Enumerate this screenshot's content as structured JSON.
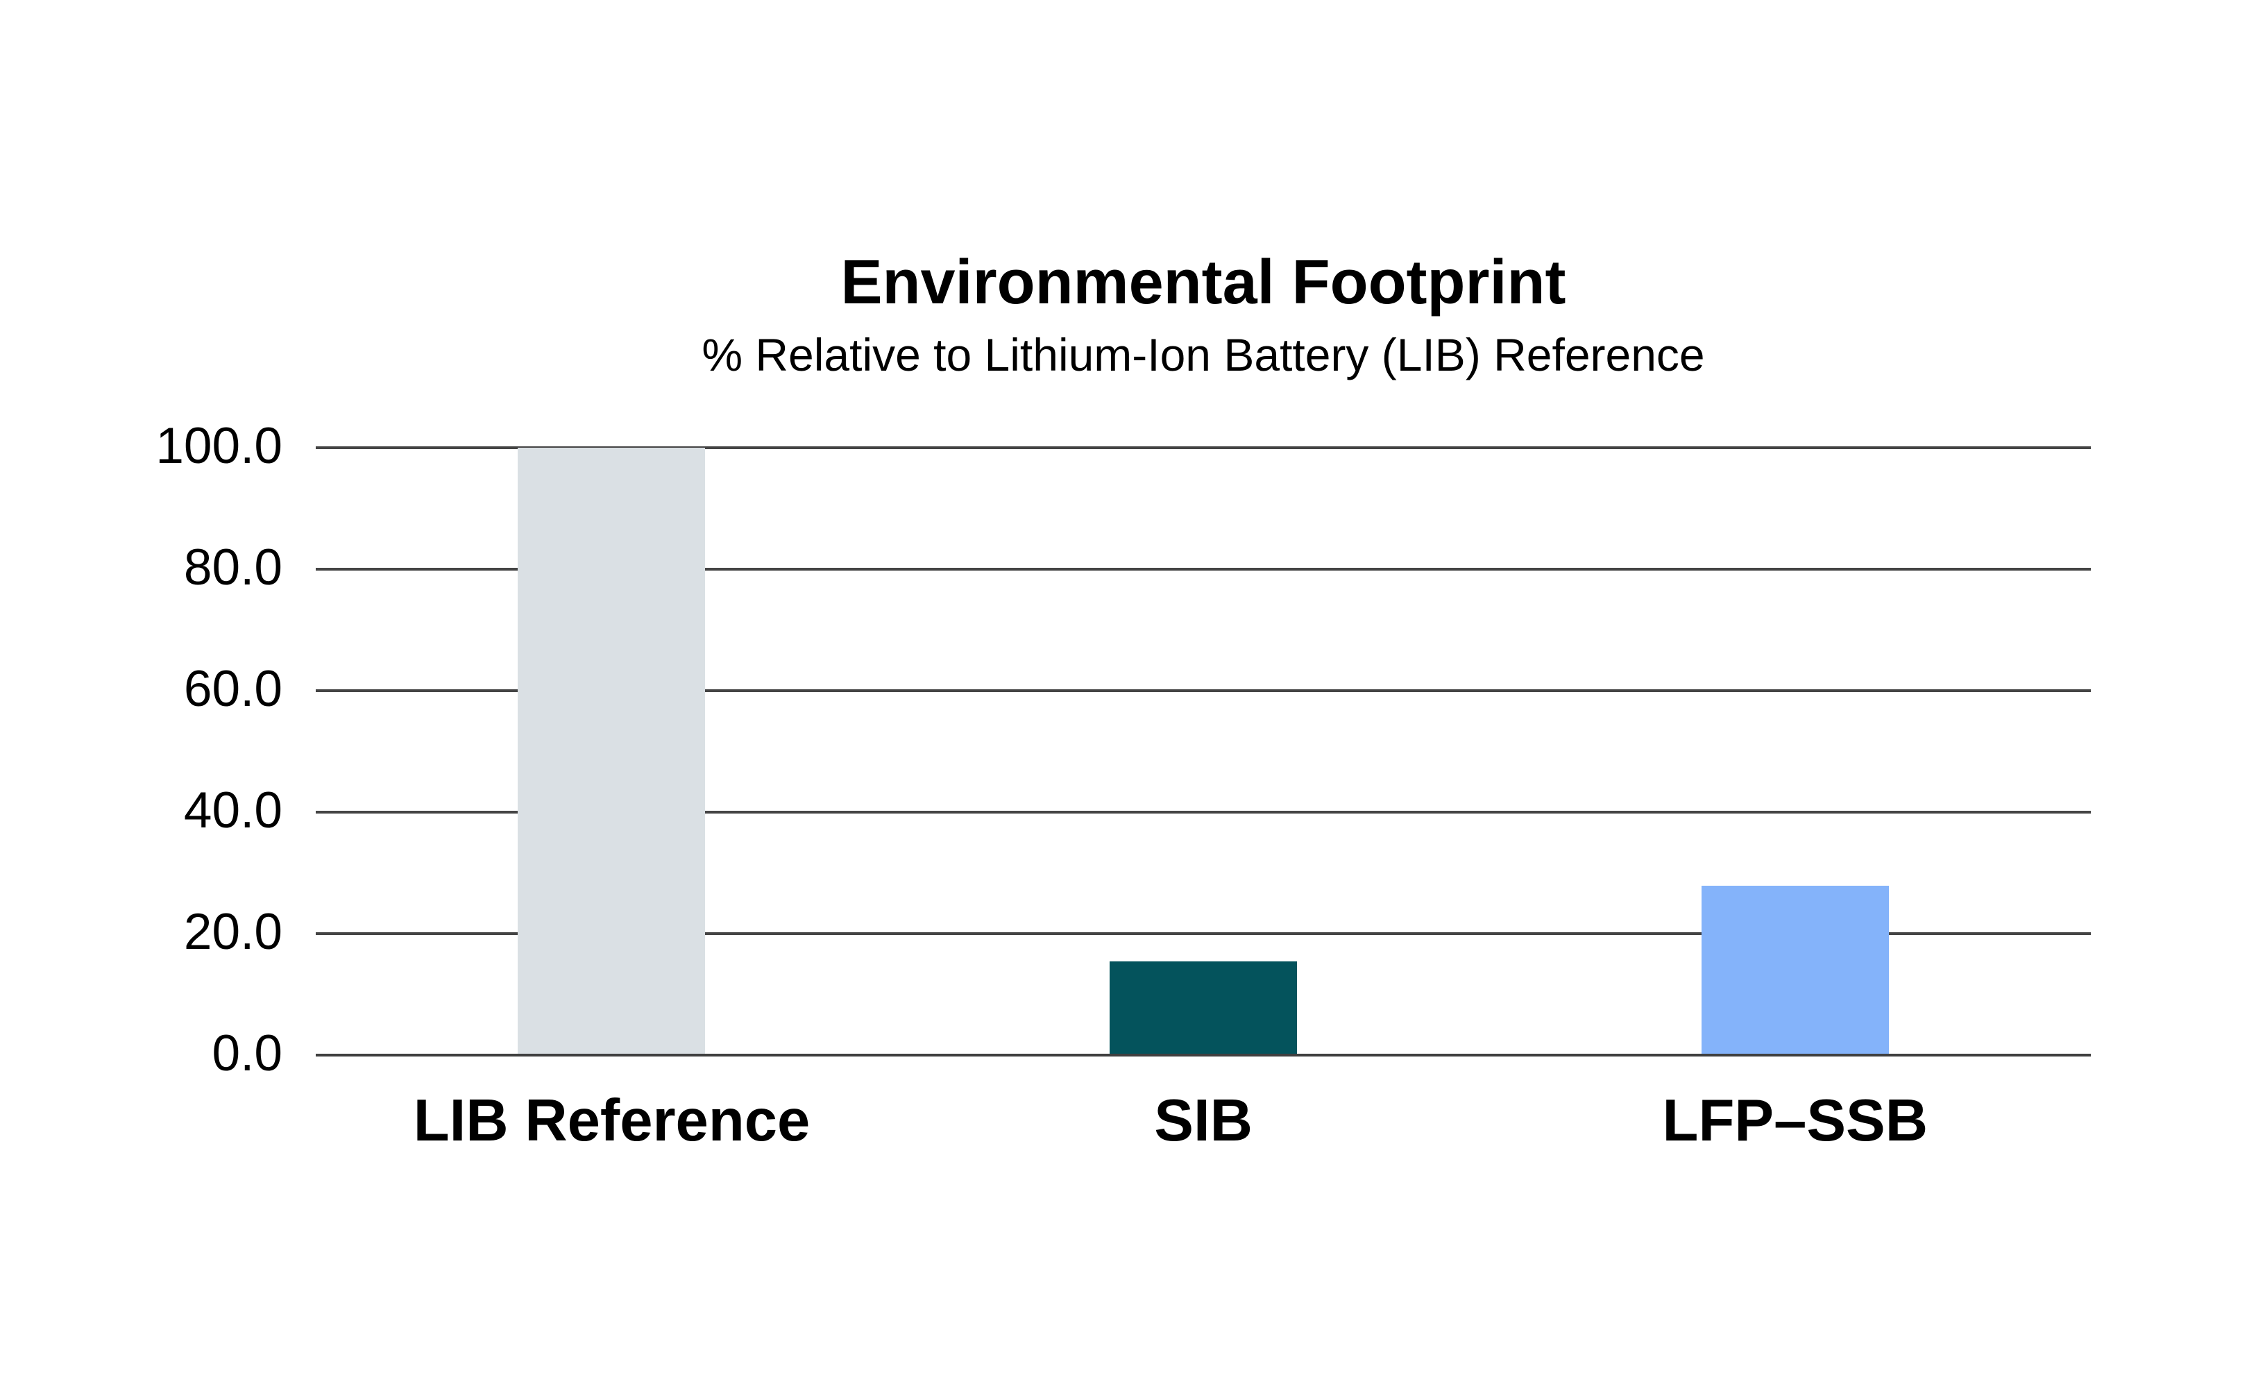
{
  "page": {
    "background_color": "#ffffff",
    "text_color": "#000000"
  },
  "chart_data": {
    "type": "bar",
    "title": "Environmental Footprint",
    "subtitle": "% Relative to Lithium-Ion Battery (LIB) Reference",
    "categories": [
      "LIB Reference",
      "SIB",
      "LFP–SSB"
    ],
    "values": [
      100.0,
      15.4,
      27.9
    ],
    "bar_colors": [
      "#DAE0E4",
      "#04535C",
      "#84B3FA"
    ],
    "xlabel": "",
    "ylabel": "",
    "ylim": [
      0,
      100
    ],
    "yticks": [
      0,
      20,
      40,
      60,
      80,
      100
    ],
    "ytick_labels": [
      "0.0",
      "20.0",
      "40.0",
      "60.0",
      "80.0",
      "100.0"
    ],
    "grid": "horizontal",
    "gridline_color": "#444444",
    "zero_line_color": "#3f3f3f",
    "legend": "none"
  }
}
